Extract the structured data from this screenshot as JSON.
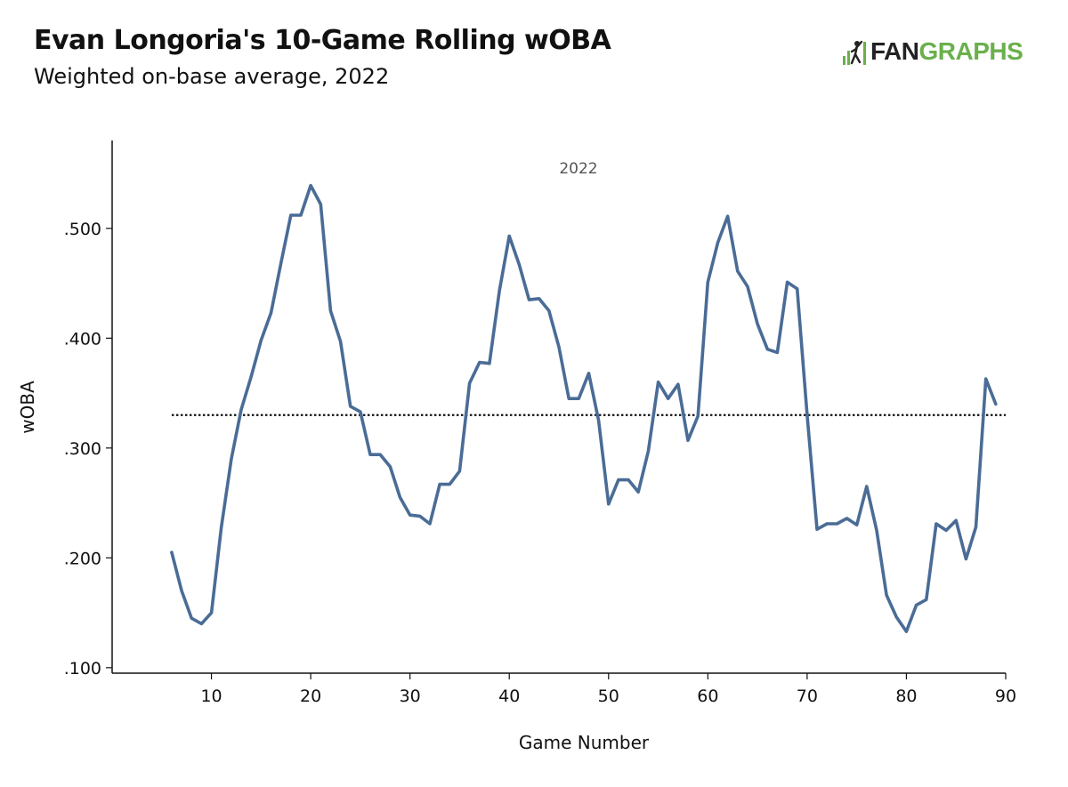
{
  "header": {
    "title": "Evan Longoria's 10-Game Rolling wOBA",
    "subtitle": "Weighted on-base average, 2022"
  },
  "logo": {
    "part1": "FAN",
    "part2": "GRAPHS",
    "accent": "#6ab04c"
  },
  "chart_data": {
    "type": "line",
    "title": "Evan Longoria's 10-Game Rolling wOBA",
    "subtitle": "Weighted on-base average, 2022",
    "panel_label": "2022",
    "xlabel": "Game Number",
    "ylabel": "wOBA",
    "xlim": [
      0,
      90
    ],
    "ylim": [
      0.095,
      0.58
    ],
    "x_ticks": [
      10,
      20,
      30,
      40,
      50,
      60,
      70,
      80,
      90
    ],
    "y_ticks": [
      0.1,
      0.2,
      0.3,
      0.4,
      0.5
    ],
    "y_tick_labels": [
      ".100",
      ".200",
      ".300",
      ".400",
      ".500"
    ],
    "grid": false,
    "line_color": "#4a6c96",
    "reference_line": {
      "y": 0.33,
      "style": "dotted",
      "color": "#111111",
      "x_range": [
        6,
        90
      ]
    },
    "series": [
      {
        "x": [
          6,
          7,
          8,
          9,
          10,
          11,
          12,
          13,
          14,
          15,
          16,
          17,
          18,
          19,
          20,
          21,
          22,
          23,
          24,
          25,
          26,
          27,
          28,
          29,
          30,
          31,
          32,
          33,
          34,
          35,
          36,
          37,
          38,
          39,
          40,
          41,
          42,
          43,
          44,
          45,
          46,
          47,
          48,
          49,
          50,
          51,
          52,
          53,
          54,
          55,
          56,
          57,
          58,
          59,
          60,
          61,
          62,
          63,
          64,
          65,
          66,
          67,
          68,
          69,
          70,
          71,
          72,
          73,
          74,
          75,
          76,
          77,
          78,
          79,
          80,
          81,
          82,
          83,
          84,
          85,
          86,
          87,
          88,
          89
        ],
        "values": [
          0.205,
          0.17,
          0.145,
          0.14,
          0.15,
          0.228,
          0.29,
          0.335,
          0.365,
          0.398,
          0.423,
          0.468,
          0.512,
          0.512,
          0.539,
          0.522,
          0.425,
          0.397,
          0.338,
          0.333,
          0.294,
          0.294,
          0.283,
          0.255,
          0.239,
          0.238,
          0.231,
          0.267,
          0.267,
          0.279,
          0.359,
          0.378,
          0.377,
          0.443,
          0.493,
          0.467,
          0.435,
          0.436,
          0.425,
          0.392,
          0.345,
          0.345,
          0.368,
          0.325,
          0.249,
          0.271,
          0.271,
          0.26,
          0.297,
          0.36,
          0.345,
          0.358,
          0.307,
          0.329,
          0.451,
          0.487,
          0.511,
          0.461,
          0.447,
          0.413,
          0.39,
          0.387,
          0.451,
          0.445,
          0.33,
          0.226,
          0.231,
          0.231,
          0.236,
          0.23,
          0.265,
          0.225,
          0.166,
          0.146,
          0.133,
          0.157,
          0.162,
          0.231,
          0.225,
          0.234,
          0.199,
          0.228,
          0.363,
          0.34
        ]
      }
    ]
  }
}
